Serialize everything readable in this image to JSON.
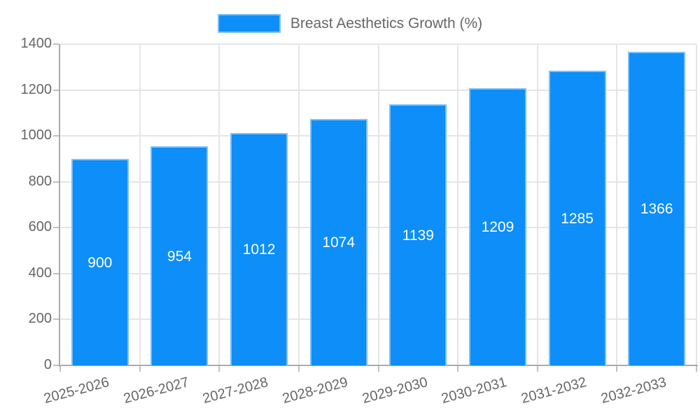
{
  "legend": {
    "label": "Breast Aesthetics Growth (%)"
  },
  "colors": {
    "bar_fill": "#0d8ef8",
    "bar_border": "#7ec0f9",
    "grid": "#e5e5e5",
    "axis": "#ababab",
    "tick": "#c0c0c0",
    "text": "#666666",
    "value_label": "#ffffff",
    "background": "#ffffff"
  },
  "chart_data": {
    "type": "bar",
    "title": "Breast Aesthetics Growth (%)",
    "legend_entries": [
      "Breast Aesthetics Growth (%)"
    ],
    "legend_position": "top",
    "categories": [
      "2025-2026",
      "2026-2027",
      "2027-2028",
      "2028-2029",
      "2029-2030",
      "2030-2031",
      "2031-2032",
      "2032-2033"
    ],
    "values": [
      900,
      954,
      1012,
      1074,
      1139,
      1209,
      1285,
      1366
    ],
    "value_labels": [
      "900",
      "954",
      "1012",
      "1074",
      "1139",
      "1209",
      "1285",
      "1366"
    ],
    "xlabel": "",
    "ylabel": "",
    "ylim": [
      0,
      1400
    ],
    "yticks": [
      0,
      200,
      400,
      600,
      800,
      1000,
      1200,
      1400
    ],
    "grid": true,
    "x_tick_rotation_deg": -15
  }
}
